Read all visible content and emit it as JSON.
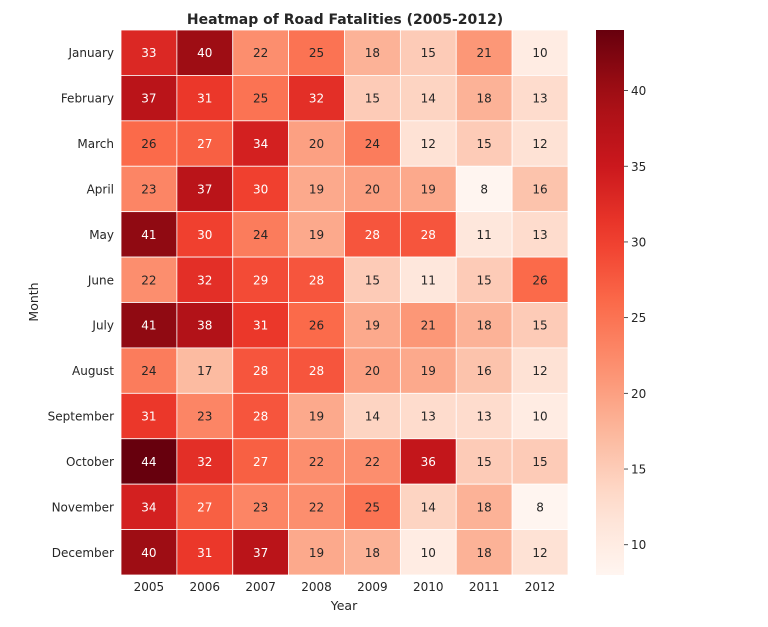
{
  "chart_data": {
    "type": "heatmap",
    "title": "Heatmap of Road Fatalities (2005-2012)",
    "xlabel": "Year",
    "ylabel": "Month",
    "x_categories": [
      "2005",
      "2006",
      "2007",
      "2008",
      "2009",
      "2010",
      "2011",
      "2012"
    ],
    "y_categories": [
      "January",
      "February",
      "March",
      "April",
      "May",
      "June",
      "July",
      "August",
      "September",
      "October",
      "November",
      "December"
    ],
    "values": [
      [
        33,
        40,
        22,
        25,
        18,
        15,
        21,
        10
      ],
      [
        37,
        31,
        25,
        32,
        15,
        14,
        18,
        13
      ],
      [
        26,
        27,
        34,
        20,
        24,
        12,
        15,
        12
      ],
      [
        23,
        37,
        30,
        19,
        20,
        19,
        8,
        16
      ],
      [
        41,
        30,
        24,
        19,
        28,
        28,
        11,
        13
      ],
      [
        22,
        32,
        29,
        28,
        15,
        11,
        15,
        26
      ],
      [
        41,
        38,
        31,
        26,
        19,
        21,
        18,
        15
      ],
      [
        24,
        17,
        28,
        28,
        20,
        19,
        16,
        12
      ],
      [
        31,
        23,
        28,
        19,
        14,
        13,
        13,
        10
      ],
      [
        44,
        32,
        27,
        22,
        22,
        36,
        15,
        15
      ],
      [
        34,
        27,
        23,
        22,
        25,
        14,
        18,
        8
      ],
      [
        40,
        31,
        37,
        19,
        18,
        10,
        18,
        12
      ]
    ],
    "colormap": "Reds",
    "vmin": 8,
    "vmax": 44,
    "colorbar_ticks": [
      10,
      15,
      20,
      25,
      30,
      35,
      40
    ],
    "colors": {
      "low": "#fff5f0",
      "high": "#67000d",
      "cell_border": "#ffffff"
    }
  }
}
